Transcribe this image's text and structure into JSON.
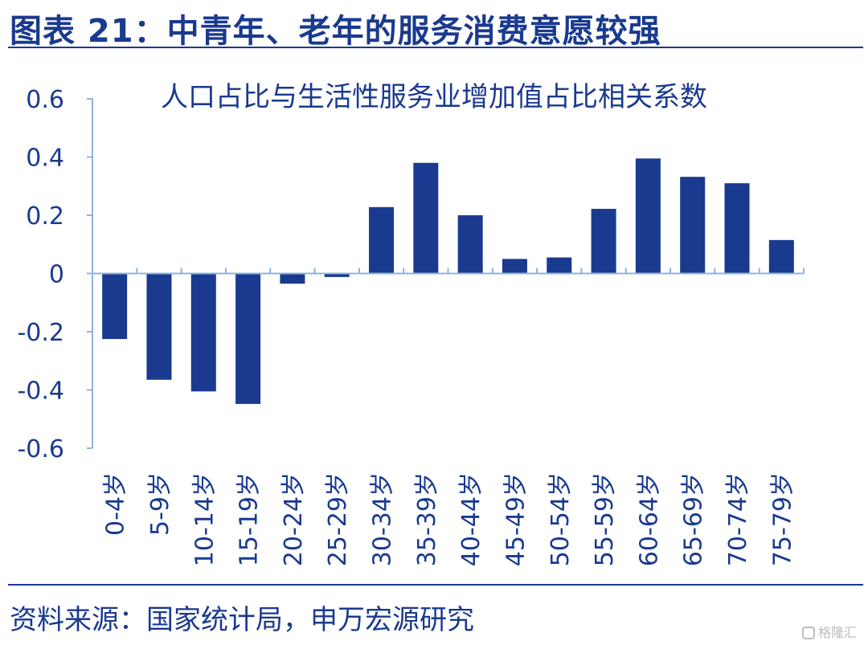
{
  "header": {
    "title": "图表 21：中青年、老年的服务消费意愿较强"
  },
  "chart_data": {
    "type": "bar",
    "title": "人口占比与生活性服务业增加值占比相关系数",
    "xlabel": "",
    "ylabel": "",
    "ylim": [
      -0.6,
      0.6
    ],
    "yticks": [
      0.6,
      0.4,
      0.2,
      0,
      -0.2,
      -0.4,
      -0.6
    ],
    "ytick_labels": [
      "0.6",
      "0.4",
      "0.2",
      "0",
      "-0.2",
      "-0.4",
      "-0.6"
    ],
    "categories": [
      "0-4岁",
      "5-9岁",
      "10-14岁",
      "15-19岁",
      "20-24岁",
      "25-29岁",
      "30-34岁",
      "35-39岁",
      "40-44岁",
      "45-49岁",
      "50-54岁",
      "55-59岁",
      "60-64岁",
      "65-69岁",
      "70-74岁",
      "75-79岁"
    ],
    "values": [
      -0.225,
      -0.365,
      -0.405,
      -0.448,
      -0.035,
      -0.012,
      0.228,
      0.38,
      0.2,
      0.05,
      0.055,
      0.222,
      0.395,
      0.332,
      0.31,
      0.115
    ],
    "bar_color": "#1a3a8f",
    "axis_color": "#8fb3dc",
    "grid": false,
    "legend": "none"
  },
  "footer": {
    "source": "资料来源：国家统计局，申万宏源研究",
    "watermark": "格隆汇"
  }
}
